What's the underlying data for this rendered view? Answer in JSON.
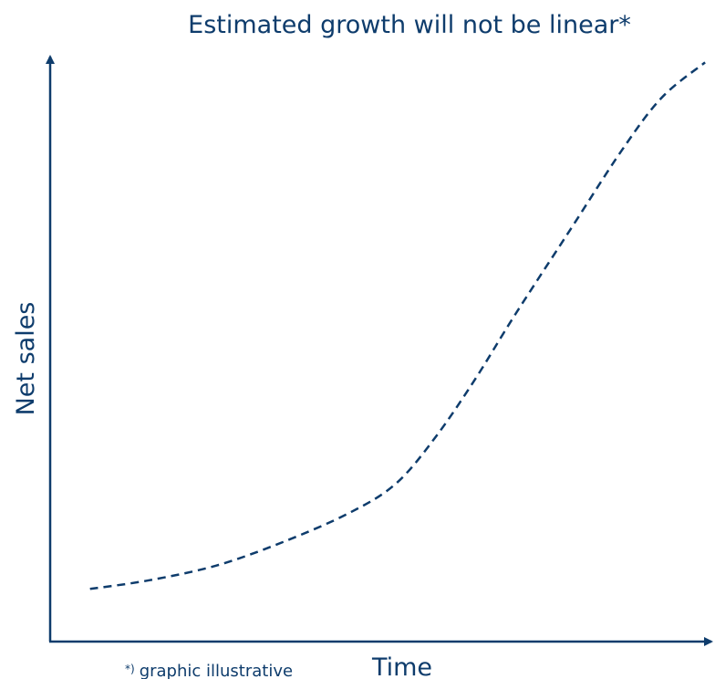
{
  "chart_data": {
    "type": "line",
    "title": "Estimated growth will not be linear*",
    "xlabel": "Time",
    "ylabel": "Net sales",
    "x_ticks": false,
    "y_ticks": false,
    "grid": false,
    "legend": "none",
    "xlim": [
      0,
      100
    ],
    "ylim": [
      0,
      100
    ],
    "series": [
      {
        "line_style": "dashed",
        "color": "#0e3c6c",
        "x": [
          6,
          15,
          25,
          35,
          45,
          52,
          58,
          64,
          70,
          78,
          86,
          92,
          98.5
        ],
        "y": [
          9,
          10.5,
          13,
          17,
          22,
          27,
          35,
          45,
          56,
          70,
          84,
          93,
          99
        ]
      }
    ],
    "annotations": {
      "footnote_marker": "*)",
      "footnote_text": "graphic illustrative"
    }
  },
  "colors": {
    "ink": "#0e3c6c",
    "background": "#ffffff"
  }
}
